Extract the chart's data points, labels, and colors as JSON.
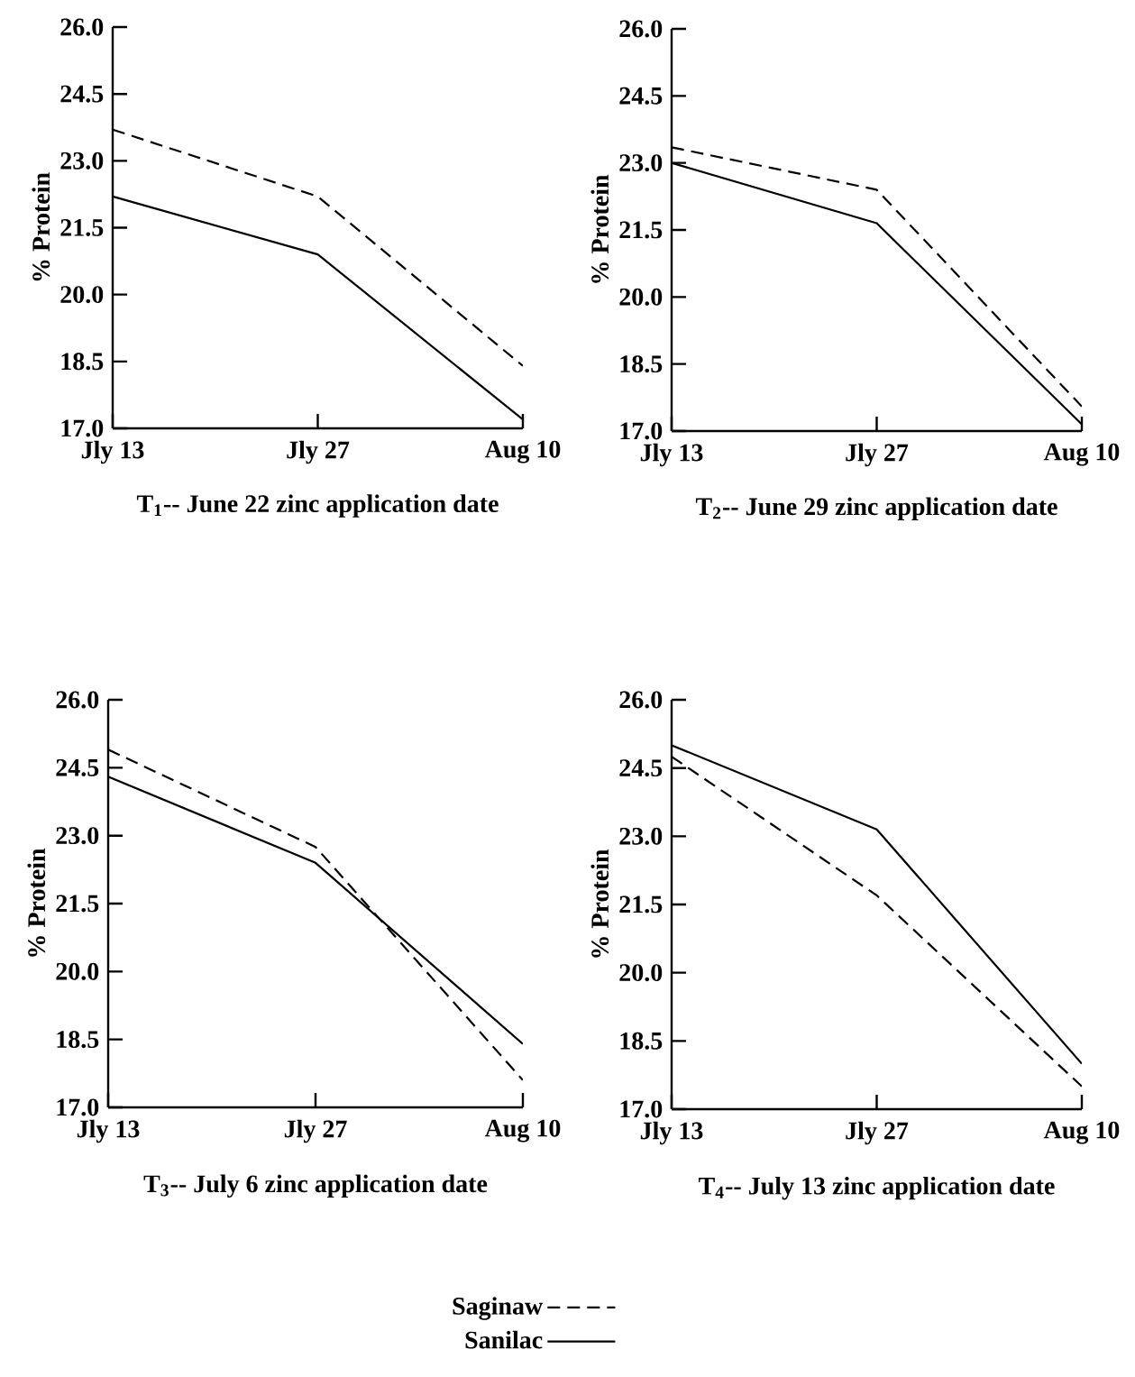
{
  "chart_data": [
    {
      "type": "line",
      "title": "T$_{1}$-- June 22 zinc application date",
      "ylabel": "% Protein",
      "categories": [
        "Jly 13",
        "Jly 27",
        "Aug 10"
      ],
      "ylim": [
        17,
        26
      ],
      "yticks": [
        {
          "value": 17,
          "label": "17.0"
        },
        {
          "value": 18.5,
          "label": "18.5"
        },
        {
          "value": 20,
          "label": "20.0"
        },
        {
          "value": 21.5,
          "label": "21.5"
        },
        {
          "value": 23,
          "label": "23.0"
        },
        {
          "value": 24.5,
          "label": "24.5"
        },
        {
          "value": 26,
          "label": "26.0"
        }
      ],
      "series": [
        {
          "color": "#000000",
          "line_style": "dashed",
          "values": [
            23.7,
            22.2,
            18.4
          ]
        },
        {
          "color": "#000000",
          "line_style": "solid",
          "values": [
            22.2,
            20.9,
            17.2
          ]
        }
      ]
    },
    {
      "type": "line",
      "title": "T$_{2}$-- June 29 zinc application date",
      "ylabel": "% Protein",
      "categories": [
        "Jly 13",
        "Jly 27",
        "Aug 10"
      ],
      "ylim": [
        17,
        26
      ],
      "yticks": [
        {
          "value": 17,
          "label": "17.0"
        },
        {
          "value": 18.5,
          "label": "18.5"
        },
        {
          "value": 20,
          "label": "20.0"
        },
        {
          "value": 21.5,
          "label": "21.5"
        },
        {
          "value": 23,
          "label": "23.0"
        },
        {
          "value": 24.5,
          "label": "24.5"
        },
        {
          "value": 26,
          "label": "26.0"
        }
      ],
      "series": [
        {
          "color": "#000000",
          "line_style": "dashed",
          "values": [
            23.35,
            22.4,
            17.55
          ]
        },
        {
          "color": "#000000",
          "line_style": "solid",
          "values": [
            23.0,
            21.65,
            17.15
          ]
        }
      ]
    },
    {
      "type": "line",
      "title": "T$_{3}$-- July 6 zinc application date",
      "ylabel": "% Protein",
      "categories": [
        "Jly 13",
        "Jly 27",
        "Aug 10"
      ],
      "ylim": [
        17,
        26
      ],
      "yticks": [
        {
          "value": 17,
          "label": "17.0"
        },
        {
          "value": 18.5,
          "label": "18.5"
        },
        {
          "value": 20,
          "label": "20.0"
        },
        {
          "value": 21.5,
          "label": "21.5"
        },
        {
          "value": 23,
          "label": "23.0"
        },
        {
          "value": 24.5,
          "label": "24.5"
        },
        {
          "value": 26,
          "label": "26.0"
        }
      ],
      "series": [
        {
          "color": "#000000",
          "line_style": "dashed",
          "values": [
            24.9,
            22.75,
            17.6
          ]
        },
        {
          "color": "#000000",
          "line_style": "solid",
          "values": [
            24.3,
            22.4,
            18.4
          ]
        }
      ]
    },
    {
      "type": "line",
      "title": "T$_{4}$-- July 13 zinc application date",
      "ylabel": "% Protein",
      "categories": [
        "Jly 13",
        "Jly 27",
        "Aug 10"
      ],
      "ylim": [
        17,
        26
      ],
      "legend": "bottom",
      "yticks": [
        {
          "value": 17,
          "label": "17.0"
        },
        {
          "value": 18.5,
          "label": "18.5"
        },
        {
          "value": 20,
          "label": "20.0"
        },
        {
          "value": 21.5,
          "label": "21.5"
        },
        {
          "value": 23,
          "label": "23.0"
        },
        {
          "value": 24.5,
          "label": "24.5"
        },
        {
          "value": 26,
          "label": "26.0"
        }
      ],
      "series": [
        {
          "name": "Saginaw",
          "color": "#000000",
          "line_style": "dashed",
          "values": [
            24.75,
            21.7,
            17.5
          ]
        },
        {
          "name": "Sanilac",
          "color": "#000000",
          "line_style": "solid",
          "values": [
            25.0,
            23.15,
            18.0
          ]
        }
      ]
    }
  ]
}
